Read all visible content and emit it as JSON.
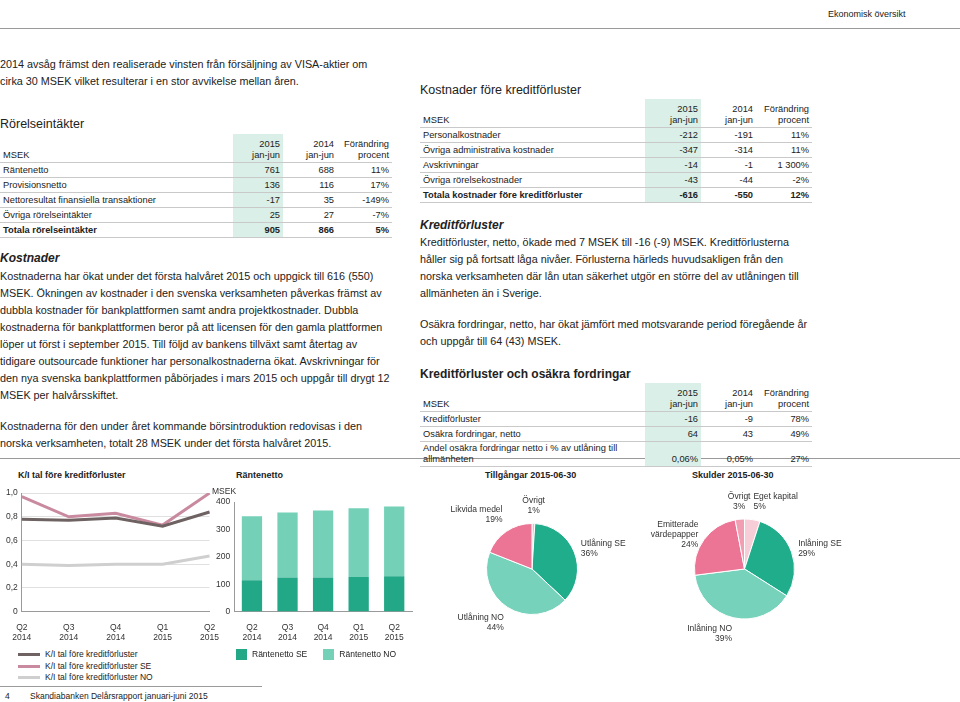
{
  "header": {
    "section": "Ekonomisk översikt"
  },
  "left": {
    "intro": "2014 avsåg främst den realiserade vinsten från försäljning av VISA-aktier om cirka 30 MSEK vilket resulterar i en stor avvikelse mellan åren.",
    "revenue_title": "Rörelseintäkter",
    "revenue_table": {
      "header": [
        [
          "MSEK"
        ],
        [
          "2015",
          "jan-jun"
        ],
        [
          "2014",
          "jan-jun"
        ],
        [
          "Förändring",
          "procent"
        ]
      ],
      "rows": [
        [
          "Räntenetto",
          "761",
          "688",
          "11%"
        ],
        [
          "Provisionsnetto",
          "136",
          "116",
          "17%"
        ],
        [
          "Nettoresultat finansiella transaktioner",
          "-17",
          "35",
          "-149%"
        ],
        [
          "Övriga rörelseintäkter",
          "25",
          "27",
          "-7%"
        ],
        [
          "Totala rörelseintäkter",
          "905",
          "866",
          "5%"
        ]
      ]
    },
    "costs_title": "Kostnader",
    "costs_text": [
      "Kostnaderna har ökat under det första halvåret 2015 och uppgick till 616 (550) MSEK. Ökningen av kostnader i den svenska verksamheten påverkas främst av dubbla kostnader för bankplattformen samt andra projektkostnader. Dubbla kostnaderna för bankplattformen beror på att licensen för den gamla plattformen löper ut först i september 2015. Till följd av bankens tillväxt samt återtag av tidigare outsourcade funktioner har personalkostnaderna ökat. Avskrivningar för den nya svenska bankplattformen påbörjades i mars 2015 och uppgår till drygt 12 MSEK per halvårsskiftet.",
      "Kostnaderna för den under året kommande börsintroduktion redovisas i den norska verksamheten, totalt 28 MSEK under det första halvåret 2015."
    ]
  },
  "right": {
    "costs_title": "Kostnader före kreditförluster",
    "costs_table": {
      "header": [
        [
          "MSEK"
        ],
        [
          "2015",
          "jan-jun"
        ],
        [
          "2014",
          "jan-jun"
        ],
        [
          "Förändring",
          "procent"
        ]
      ],
      "rows": [
        [
          "Personalkostnader",
          "-212",
          "-191",
          "11%"
        ],
        [
          "Övriga administrativa kostnader",
          "-347",
          "-314",
          "11%"
        ],
        [
          "Avskrivningar",
          "-14",
          "-1",
          "1 300%"
        ],
        [
          "Övriga rörelsekostnader",
          "-43",
          "-44",
          "-2%"
        ],
        [
          "Totala kostnader före kreditförluster",
          "-616",
          "-550",
          "12%"
        ]
      ]
    },
    "credit_title": "Kreditförluster",
    "credit_text": [
      "Kreditförluster, netto, ökade med 7 MSEK till -16 (-9) MSEK. Kreditförlusterna håller sig på fortsatt låga nivåer. Förlusterna härleds huvudsakligen från den norska verksamheten där lån utan säkerhet utgör en större del av utlåningen till allmänheten än i Sverige.",
      "Osäkra fordringar, netto, har ökat jämfört med motsvarande period föregående år och uppgår till 64 (43) MSEK."
    ],
    "credit_table_title": "Kreditförluster och osäkra fordringar",
    "credit_table": {
      "header": [
        [
          "MSEK"
        ],
        [
          "2015",
          "jan-jun"
        ],
        [
          "2014",
          "jan-jun"
        ],
        [
          "Förändring",
          "procent"
        ]
      ],
      "rows": [
        [
          "Kreditförluster",
          "-16",
          "-9",
          "78%"
        ],
        [
          "Osäkra fordringar, netto",
          "64",
          "43",
          "49%"
        ],
        [
          "Andel osäkra fordringar netto i % av utlåning till allmänheten",
          "0,06%",
          "0,05%",
          "27%"
        ]
      ]
    }
  },
  "chart_data": [
    {
      "type": "line",
      "title": "K/I tal före kreditförluster",
      "categories": [
        "Q2 2014",
        "Q3 2014",
        "Q4 2014",
        "Q1 2015",
        "Q2 2015"
      ],
      "series": [
        {
          "name": "K/I tal före kreditförluster",
          "color": "#6e6262",
          "values": [
            0.78,
            0.77,
            0.79,
            0.72,
            0.84
          ]
        },
        {
          "name": "K/I tal före kreditförluster SE",
          "color": "#c98aa0",
          "values": [
            0.97,
            0.8,
            0.83,
            0.73,
            1.0
          ]
        },
        {
          "name": "K/I tal före kreditförluster NO",
          "color": "#cfcfcf",
          "values": [
            0.4,
            0.39,
            0.4,
            0.4,
            0.47
          ]
        }
      ],
      "ylim": [
        0,
        1
      ],
      "yticks": [
        0,
        {
          "value": 0.2,
          "label": "0,2"
        },
        {
          "value": 0.4,
          "label": "0,4"
        },
        {
          "value": 0.6,
          "label": "0,6"
        },
        {
          "value": 0.8,
          "label": "0,8"
        },
        {
          "value": 1,
          "label": "1,0"
        }
      ],
      "grid": true,
      "marker": "none",
      "legend": "bottom"
    },
    {
      "type": "bar",
      "title": "Räntenetto",
      "ylabel": "MSEK",
      "stacked": true,
      "categories": [
        "Q2 2014",
        "Q3 2014",
        "Q4 2014",
        "Q1 2015",
        "Q2 2015"
      ],
      "series": [
        {
          "name": "Räntenetto SE",
          "color": "#22a887",
          "values": [
            114,
            124,
            124,
            126,
            129
          ]
        },
        {
          "name": "Räntenetto NO",
          "color": "#74d1b8",
          "values": [
            234,
            238,
            245,
            251,
            255
          ]
        }
      ],
      "ylim": [
        0,
        400
      ],
      "yticks": [
        0,
        100,
        200,
        300,
        400
      ],
      "grid": false,
      "legend": "bottom"
    },
    {
      "type": "pie",
      "title": "Tillgångar 2015-06-30",
      "categories": [
        "Övrigt",
        "Utlåning SE",
        "Utlåning NO",
        "Likvida medel"
      ],
      "values": [
        1,
        36,
        44,
        19
      ],
      "value_labels": [
        "1%",
        "36%",
        "44%",
        "19%"
      ],
      "colors": [
        "#f4b6c4",
        "#20ad8b",
        "#76d2ba",
        "#ec7596"
      ],
      "data_labels": true
    },
    {
      "type": "pie",
      "title": "Skulder 2015-06-30",
      "categories": [
        "Eget kapital",
        "Inlåning SE",
        "Inlåning NO",
        "Emitterade värdepapper",
        "Övrigt"
      ],
      "values": [
        5,
        29,
        39,
        24,
        3
      ],
      "value_labels": [
        "5%",
        "29%",
        "39%",
        "24%",
        "3%"
      ],
      "colors": [
        "#f7cdd7",
        "#20ad8b",
        "#76d2ba",
        "#ec7596",
        "#f19db2"
      ],
      "data_labels": true
    }
  ],
  "footer": {
    "page": "4",
    "text": "Skandiabanken Delårsrapport januari-juni 2015"
  }
}
